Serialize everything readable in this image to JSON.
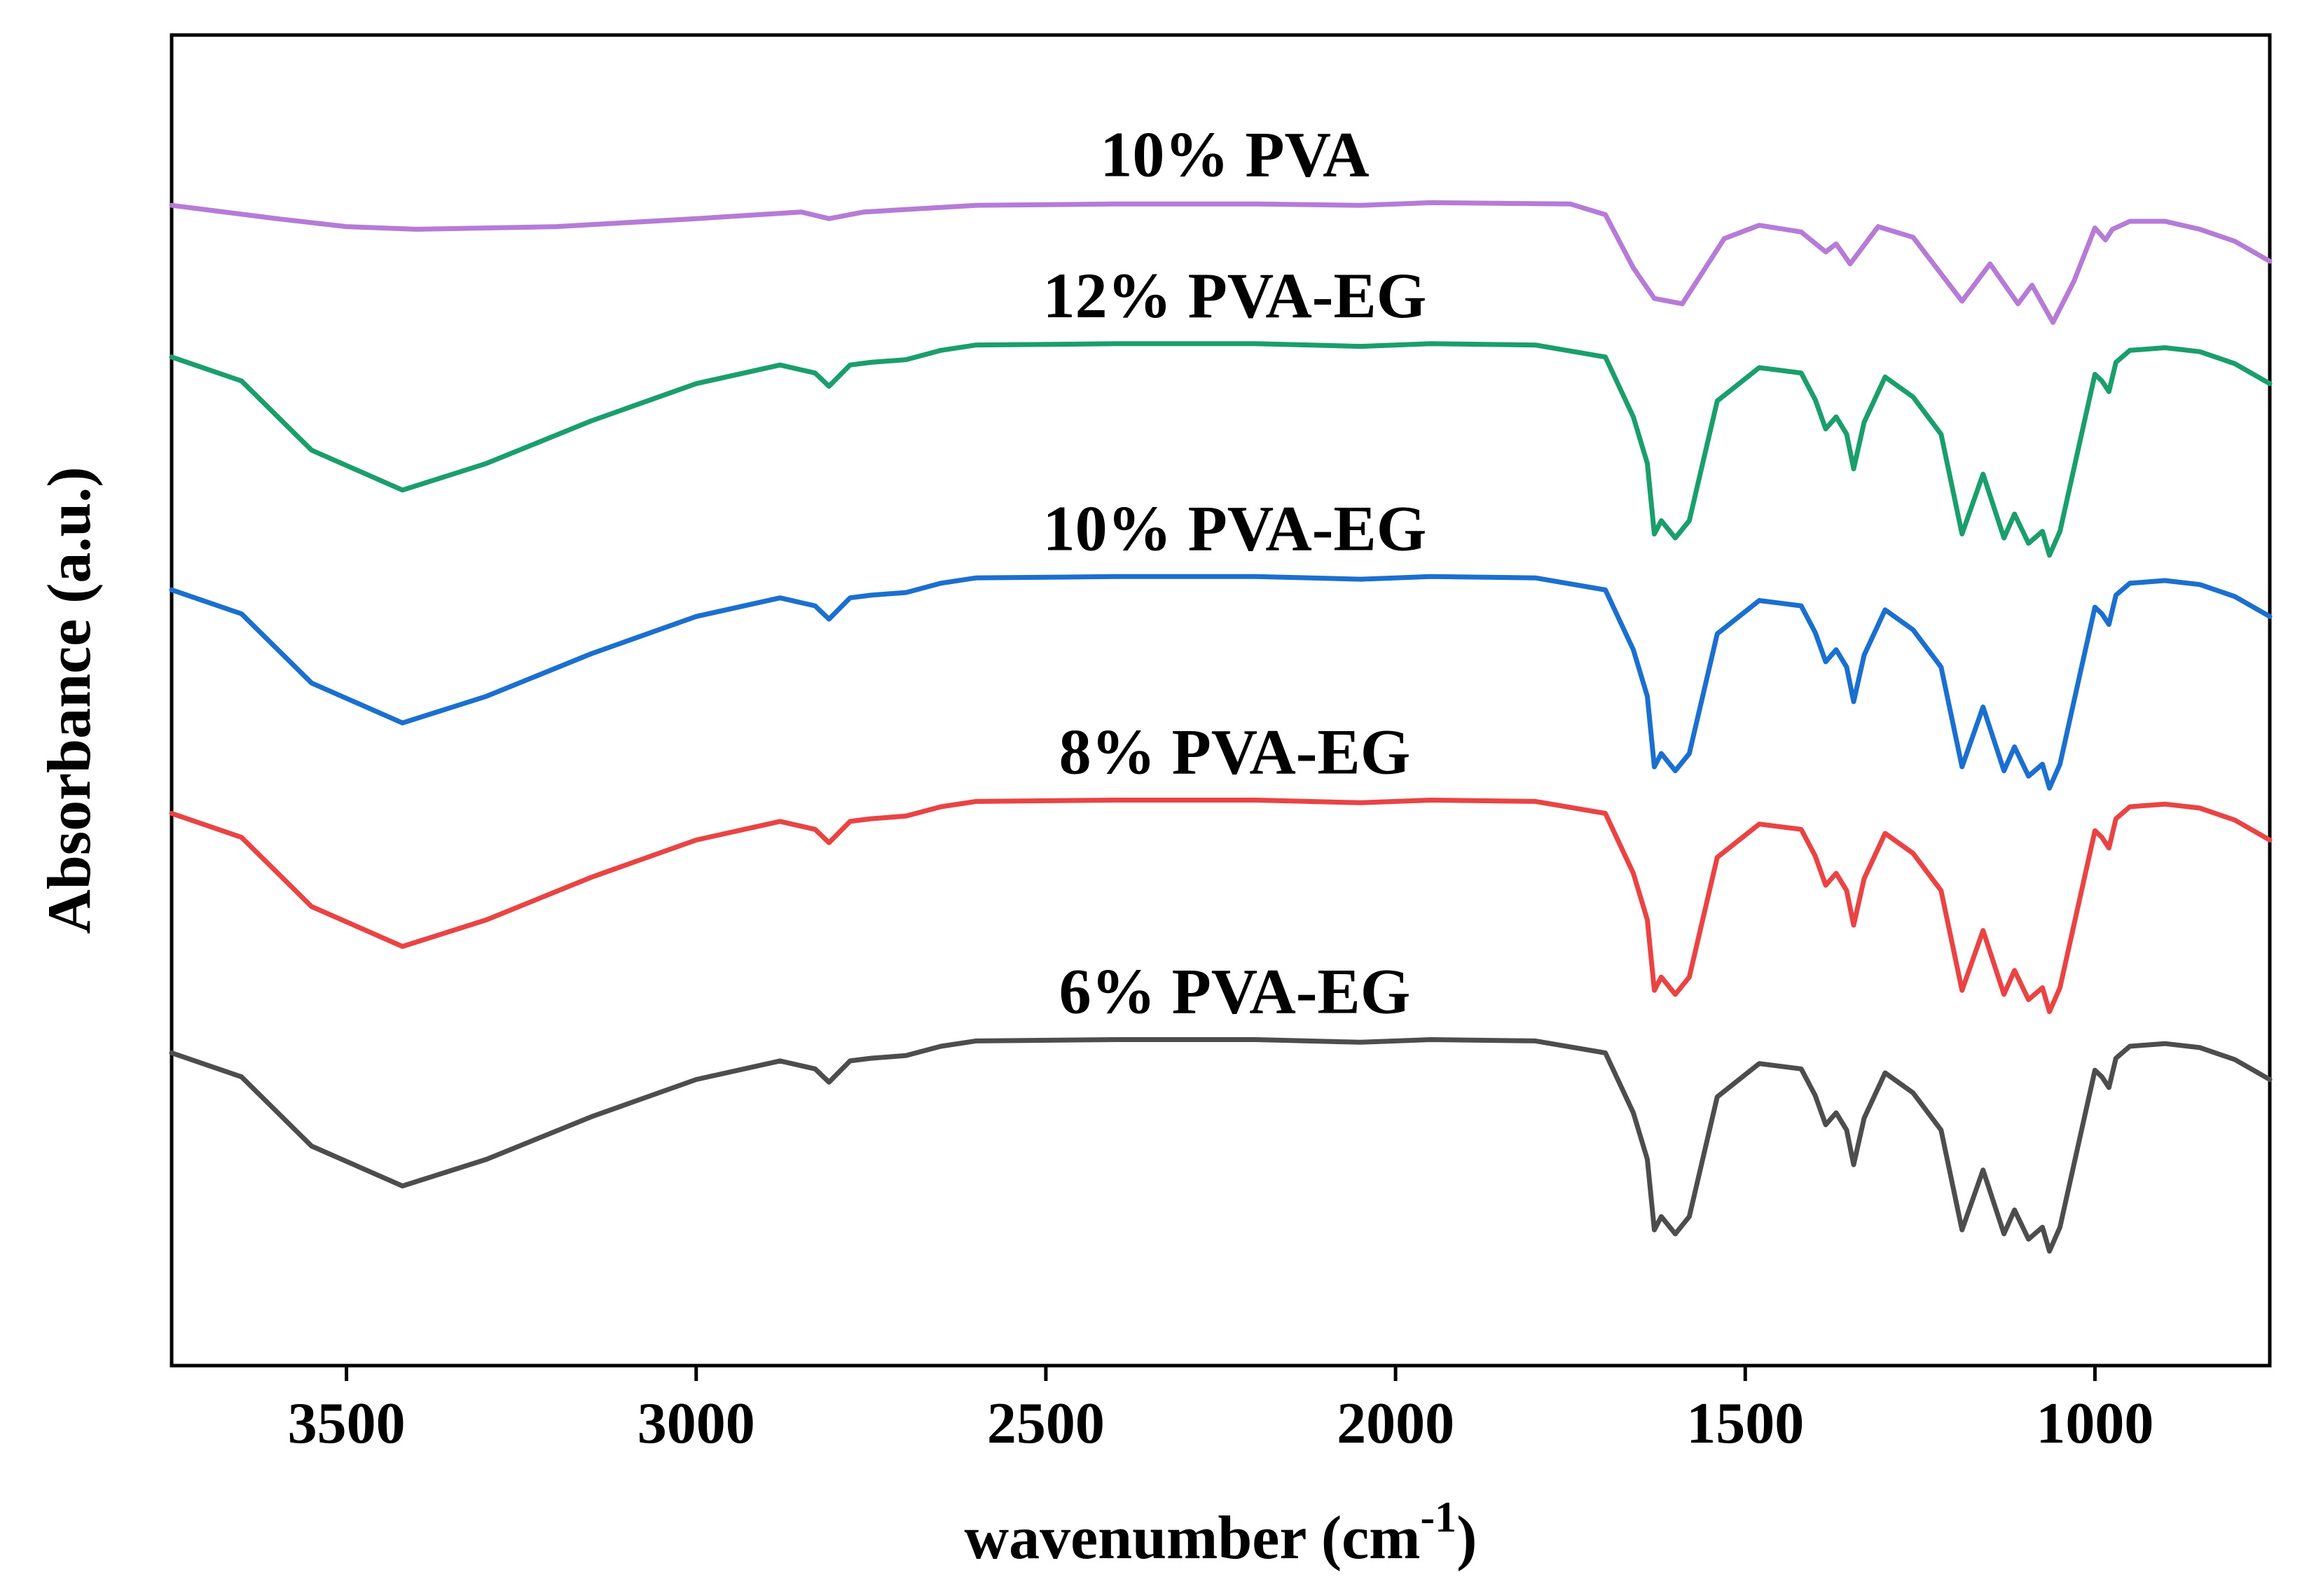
{
  "chart_data": {
    "type": "line",
    "title": "",
    "xlabel": "wavenumber (cm",
    "xlabel_sup": "-1",
    "xlabel_close": ")",
    "ylabel": "Absorbance (a.u.)",
    "xlim": [
      3750,
      750
    ],
    "x_reversed": true,
    "y_ticks_shown": false,
    "grid": false,
    "xticks": [
      3500,
      3000,
      2500,
      2000,
      1500,
      1000
    ],
    "xtick_labels": [
      "3500",
      "3000",
      "2500",
      "2000",
      "1500",
      "1000"
    ],
    "ylim": [
      0,
      100
    ],
    "series": [
      {
        "name": "10% PVA",
        "label": "10% PVA",
        "color": "#b57bd6",
        "x": [
          3750,
          3600,
          3500,
          3400,
          3200,
          3000,
          2850,
          2810,
          2760,
          2600,
          2400,
          2200,
          2050,
          1950,
          1750,
          1700,
          1660,
          1630,
          1590,
          1530,
          1480,
          1420,
          1385,
          1370,
          1350,
          1310,
          1260,
          1190,
          1150,
          1110,
          1090,
          1060,
          1030,
          1000,
          985,
          975,
          950,
          900,
          850,
          800,
          750
        ],
        "values": [
          87.2,
          86.2,
          85.6,
          85.4,
          85.6,
          86.2,
          86.7,
          86.2,
          86.7,
          87.2,
          87.3,
          87.3,
          87.2,
          87.4,
          87.3,
          86.5,
          82.5,
          80.2,
          79.8,
          84.7,
          85.7,
          85.2,
          83.7,
          84.3,
          82.8,
          85.6,
          84.8,
          80.0,
          82.8,
          79.8,
          81.2,
          78.4,
          81.5,
          85.5,
          84.6,
          85.4,
          86.0,
          86.0,
          85.4,
          84.5,
          83.0
        ]
      },
      {
        "name": "12% PVA-EG",
        "label": "12% PVA-EG",
        "color": "#1a9e6b",
        "x": [
          3750,
          3650,
          3550,
          3420,
          3300,
          3150,
          3000,
          2880,
          2830,
          2810,
          2780,
          2750,
          2700,
          2650,
          2600,
          2400,
          2200,
          2050,
          1950,
          1800,
          1700,
          1660,
          1640,
          1630,
          1620,
          1600,
          1580,
          1540,
          1480,
          1420,
          1400,
          1385,
          1370,
          1355,
          1345,
          1330,
          1300,
          1260,
          1220,
          1190,
          1160,
          1130,
          1115,
          1095,
          1075,
          1065,
          1050,
          1020,
          1000,
          990,
          980,
          970,
          950,
          900,
          850,
          800,
          750
        ],
        "values": [
          75.8,
          74.0,
          68.8,
          65.8,
          67.8,
          71.0,
          73.8,
          75.2,
          74.6,
          73.6,
          75.2,
          75.4,
          75.6,
          76.3,
          76.7,
          76.8,
          76.8,
          76.6,
          76.8,
          76.7,
          75.8,
          71.3,
          67.8,
          62.5,
          63.5,
          62.2,
          63.5,
          72.5,
          75.0,
          74.6,
          72.6,
          70.4,
          71.3,
          70.0,
          67.4,
          70.9,
          74.3,
          72.8,
          70.0,
          62.5,
          67.0,
          62.2,
          64.0,
          61.8,
          62.7,
          60.9,
          62.7,
          69.8,
          74.5,
          74.0,
          73.2,
          75.4,
          76.3,
          76.5,
          76.2,
          75.3,
          73.8
        ]
      },
      {
        "name": "10% PVA-EG",
        "label": "10% PVA-EG",
        "color": "#1a6fcf",
        "x": [
          3750,
          3650,
          3550,
          3420,
          3300,
          3150,
          3000,
          2880,
          2830,
          2810,
          2780,
          2750,
          2700,
          2650,
          2600,
          2400,
          2200,
          2050,
          1950,
          1800,
          1700,
          1660,
          1640,
          1630,
          1620,
          1600,
          1580,
          1540,
          1480,
          1420,
          1400,
          1385,
          1370,
          1355,
          1345,
          1330,
          1300,
          1260,
          1220,
          1190,
          1160,
          1130,
          1115,
          1095,
          1075,
          1065,
          1050,
          1020,
          1000,
          990,
          980,
          970,
          950,
          900,
          850,
          800,
          750
        ],
        "values": [
          58.3,
          56.5,
          51.3,
          48.3,
          50.3,
          53.5,
          56.3,
          57.7,
          57.1,
          56.1,
          57.7,
          57.9,
          58.1,
          58.8,
          59.2,
          59.3,
          59.3,
          59.1,
          59.3,
          59.2,
          58.3,
          53.8,
          50.3,
          45.0,
          46.0,
          44.7,
          46.0,
          55.0,
          57.5,
          57.1,
          55.1,
          52.9,
          53.8,
          52.5,
          49.9,
          53.4,
          56.8,
          55.3,
          52.5,
          45.0,
          49.5,
          44.7,
          46.5,
          44.3,
          45.2,
          43.4,
          45.2,
          52.3,
          57.0,
          56.5,
          55.7,
          57.9,
          58.8,
          59.0,
          58.7,
          57.8,
          56.3
        ]
      },
      {
        "name": "8% PVA-EG",
        "label": "8% PVA-EG",
        "color": "#ea4343",
        "x": [
          3750,
          3650,
          3550,
          3420,
          3300,
          3150,
          3000,
          2880,
          2830,
          2810,
          2780,
          2750,
          2700,
          2650,
          2600,
          2400,
          2200,
          2050,
          1950,
          1800,
          1700,
          1660,
          1640,
          1630,
          1620,
          1600,
          1580,
          1540,
          1480,
          1420,
          1400,
          1385,
          1370,
          1355,
          1345,
          1330,
          1300,
          1260,
          1220,
          1190,
          1160,
          1130,
          1115,
          1095,
          1075,
          1065,
          1050,
          1020,
          1000,
          990,
          980,
          970,
          950,
          900,
          850,
          800,
          750
        ],
        "values": [
          41.5,
          39.7,
          34.5,
          31.5,
          33.5,
          36.7,
          39.5,
          40.9,
          40.3,
          39.3,
          40.9,
          41.1,
          41.3,
          42.0,
          42.4,
          42.5,
          42.5,
          42.3,
          42.5,
          42.4,
          41.5,
          37.0,
          33.5,
          28.2,
          29.2,
          27.9,
          29.2,
          38.2,
          40.7,
          40.3,
          38.3,
          36.1,
          37.0,
          35.7,
          33.1,
          36.6,
          40.0,
          38.5,
          35.7,
          28.2,
          32.7,
          27.9,
          29.7,
          27.5,
          28.4,
          26.6,
          28.4,
          35.5,
          40.2,
          39.7,
          38.9,
          41.1,
          42.0,
          42.2,
          41.9,
          41.0,
          39.5
        ]
      },
      {
        "name": "6% PVA-EG",
        "label": "6% PVA-EG",
        "color": "#4d4d4d",
        "x": [
          3750,
          3650,
          3550,
          3420,
          3300,
          3150,
          3000,
          2880,
          2830,
          2810,
          2780,
          2750,
          2700,
          2650,
          2600,
          2400,
          2200,
          2050,
          1950,
          1800,
          1700,
          1660,
          1640,
          1630,
          1620,
          1600,
          1580,
          1540,
          1480,
          1420,
          1400,
          1385,
          1370,
          1355,
          1345,
          1330,
          1300,
          1260,
          1220,
          1190,
          1160,
          1130,
          1115,
          1095,
          1075,
          1065,
          1050,
          1020,
          1000,
          990,
          980,
          970,
          950,
          900,
          850,
          800,
          750
        ],
        "values": [
          23.5,
          21.7,
          16.5,
          13.5,
          15.5,
          18.7,
          21.5,
          22.9,
          22.3,
          21.3,
          22.9,
          23.1,
          23.3,
          24.0,
          24.4,
          24.5,
          24.5,
          24.3,
          24.5,
          24.4,
          23.5,
          19.0,
          15.5,
          10.2,
          11.2,
          9.9,
          11.2,
          20.2,
          22.7,
          22.3,
          20.3,
          18.1,
          19.0,
          17.7,
          15.1,
          18.6,
          22.0,
          20.5,
          17.7,
          10.2,
          14.7,
          9.9,
          11.7,
          9.5,
          10.4,
          8.6,
          10.4,
          17.5,
          22.2,
          21.7,
          20.9,
          23.1,
          24.0,
          24.2,
          23.9,
          23.0,
          21.5
        ]
      }
    ]
  }
}
